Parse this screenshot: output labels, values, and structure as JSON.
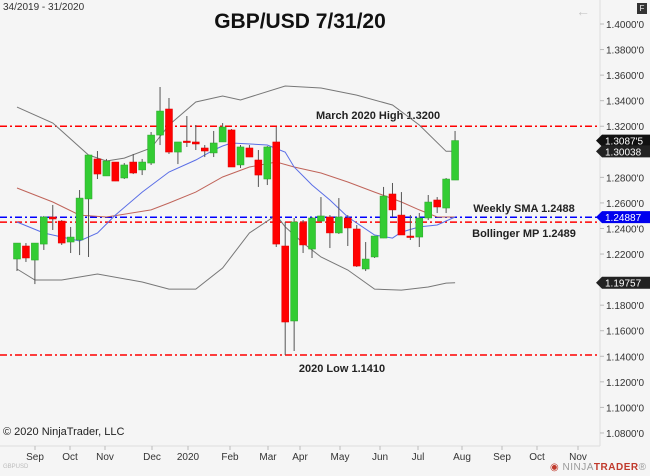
{
  "header": {
    "date_range": "34/2019 - 31/2020",
    "title": "GBP/USD 7/31/20",
    "back_icon": "arrow-left-icon",
    "f_button": "F"
  },
  "footer": {
    "copyright": "© 2020 NinjaTrader, LLC",
    "symbol": "GBPUSD",
    "logo_prefix": "NINJA",
    "logo_suffix": "TRADER",
    "logo_mark": "®"
  },
  "colors": {
    "up": "#33cc33",
    "down": "#ff0000",
    "upper_band": "#777777",
    "lower_band": "#777777",
    "middle_band": "#c0645a",
    "sma": "#5a6ee6",
    "sma_line": "#0000ff",
    "level_line": "#ff0000",
    "background": "#f5f5f5"
  },
  "chart_data": {
    "type": "candlestick",
    "title": "GBP/USD 7/31/20",
    "interval": "weekly",
    "ylim": [
      1.08,
      1.4
    ],
    "y_ticks": [
      "1.4000'0",
      "1.3800'0",
      "1.3600'0",
      "1.3400'0",
      "1.3200'0",
      "1.2800'0",
      "1.2600'0",
      "1.2400'0",
      "1.2200'0",
      "1.1800'0",
      "1.1600'0",
      "1.1400'0",
      "1.1200'0",
      "1.1000'0",
      "1.0800'0"
    ],
    "x_ticks": [
      "Sep",
      "Oct",
      "Nov",
      "Dec",
      "2020",
      "Feb",
      "Mar",
      "Apr",
      "May",
      "Jun",
      "Jul",
      "Aug",
      "Sep",
      "Oct",
      "Nov"
    ],
    "candles": [
      [
        1.2161,
        1.2286,
        1.2067,
        1.2286
      ],
      [
        1.2263,
        1.2286,
        1.2138,
        1.2169
      ],
      [
        1.2153,
        1.2286,
        1.1965,
        1.2286
      ],
      [
        1.2278,
        1.2498,
        1.2232,
        1.249
      ],
      [
        1.249,
        1.2584,
        1.2388,
        1.2474
      ],
      [
        1.2458,
        1.2466,
        1.2271,
        1.2286
      ],
      [
        1.2294,
        1.2412,
        1.2208,
        1.2333
      ],
      [
        1.231,
        1.2701,
        1.2192,
        1.2638
      ],
      [
        1.2631,
        1.2975,
        1.2177,
        1.2975
      ],
      [
        1.2944,
        1.3006,
        1.2787,
        1.2826
      ],
      [
        1.2811,
        1.2944,
        1.2811,
        1.2928
      ],
      [
        1.292,
        1.292,
        1.2771,
        1.2771
      ],
      [
        1.2795,
        1.2912,
        1.2787,
        1.2897
      ],
      [
        1.292,
        1.2983,
        1.2826,
        1.2834
      ],
      [
        1.2858,
        1.2944,
        1.2818,
        1.292
      ],
      [
        1.2912,
        1.3155,
        1.2897,
        1.3131
      ],
      [
        1.3131,
        1.3507,
        1.3053,
        1.3319
      ],
      [
        1.3335,
        1.3421,
        1.2983,
        1.2998
      ],
      [
        1.2998,
        1.3077,
        1.2904,
        1.3077
      ],
      [
        1.3084,
        1.328,
        1.3038,
        1.3077
      ],
      [
        1.3077,
        1.321,
        1.3014,
        1.3061
      ],
      [
        1.303,
        1.3053,
        1.2959,
        1.3006
      ],
      [
        1.2991,
        1.3163,
        1.2959,
        1.3069
      ],
      [
        1.3077,
        1.3225,
        1.3077,
        1.3194
      ],
      [
        1.3171,
        1.3178,
        1.2881,
        1.2881
      ],
      [
        1.2897,
        1.3053,
        1.2873,
        1.3038
      ],
      [
        1.303,
        1.3053,
        1.2959,
        1.2959
      ],
      [
        1.2936,
        1.3014,
        1.2725,
        1.2818
      ],
      [
        1.2787,
        1.3045,
        1.274,
        1.3038
      ],
      [
        1.3077,
        1.3194,
        1.2255,
        1.2278
      ],
      [
        1.2263,
        1.2451,
        1.141,
        1.1668
      ],
      [
        1.1676,
        1.2482,
        1.1441,
        1.2451
      ],
      [
        1.2443,
        1.2466,
        1.2208,
        1.2271
      ],
      [
        1.2239,
        1.249,
        1.2169,
        1.2482
      ],
      [
        1.2458,
        1.2646,
        1.2451,
        1.2498
      ],
      [
        1.249,
        1.2505,
        1.2247,
        1.2365
      ],
      [
        1.2365,
        1.2638,
        1.2357,
        1.249
      ],
      [
        1.2482,
        1.2505,
        1.2263,
        1.2404
      ],
      [
        1.2396,
        1.2427,
        1.2099,
        1.2106
      ],
      [
        1.2083,
        1.2294,
        1.2067,
        1.2161
      ],
      [
        1.2177,
        1.2341,
        1.2169,
        1.2341
      ],
      [
        1.2325,
        1.2725,
        1.2325,
        1.2654
      ],
      [
        1.267,
        1.2756,
        1.249,
        1.2545
      ],
      [
        1.2505,
        1.2685,
        1.2349,
        1.2349
      ],
      [
        1.2341,
        1.2505,
        1.231,
        1.2333
      ],
      [
        1.2333,
        1.2521,
        1.2255,
        1.2482
      ],
      [
        1.2482,
        1.2662,
        1.2466,
        1.2607
      ],
      [
        1.2623,
        1.2646,
        1.2521,
        1.2568
      ],
      [
        1.256,
        1.2795,
        1.2521,
        1.2787
      ],
      [
        1.2779,
        1.3163,
        1.2779,
        1.3088
      ]
    ],
    "candle_fields": [
      "open",
      "high",
      "low",
      "close"
    ],
    "indicators": {
      "upper_band": [
        [
          1,
          1.335
        ],
        [
          5,
          1.3225
        ],
        [
          9,
          1.2975
        ],
        [
          11,
          1.2928
        ],
        [
          13,
          1.2951
        ],
        [
          16,
          1.303
        ],
        [
          18,
          1.321
        ],
        [
          21,
          1.339
        ],
        [
          24,
          1.3437
        ],
        [
          26,
          1.3405
        ],
        [
          31,
          1.3515
        ],
        [
          35,
          1.3499
        ],
        [
          39,
          1.3444
        ],
        [
          43,
          1.3366
        ],
        [
          46,
          1.321
        ],
        [
          49,
          1.3004
        ],
        [
          50,
          1.3004
        ]
      ],
      "lower_band": [
        [
          1,
          1.2083
        ],
        [
          3,
          1.1997
        ],
        [
          6,
          1.1997
        ],
        [
          10,
          1.2044
        ],
        [
          15,
          1.1981
        ],
        [
          18,
          1.1926
        ],
        [
          21,
          1.1926
        ],
        [
          24,
          1.2091
        ],
        [
          27,
          1.2365
        ],
        [
          30,
          1.2505
        ],
        [
          31,
          1.2412
        ],
        [
          33,
          1.2286
        ],
        [
          35,
          1.2177
        ],
        [
          38,
          1.2075
        ],
        [
          41,
          1.1926
        ],
        [
          44,
          1.1918
        ],
        [
          47,
          1.1942
        ],
        [
          49,
          1.1973
        ],
        [
          50,
          1.1976
        ]
      ],
      "middle_band": [
        [
          1,
          1.2717
        ],
        [
          5,
          1.2607
        ],
        [
          8,
          1.2505
        ],
        [
          11,
          1.249
        ],
        [
          16,
          1.2545
        ],
        [
          18,
          1.2599
        ],
        [
          21,
          1.2685
        ],
        [
          24,
          1.2803
        ],
        [
          27,
          1.2881
        ],
        [
          30,
          1.292
        ],
        [
          32,
          1.2881
        ],
        [
          35,
          1.2834
        ],
        [
          38,
          1.2764
        ],
        [
          41,
          1.2685
        ],
        [
          44,
          1.2607
        ],
        [
          46,
          1.2545
        ],
        [
          48,
          1.249
        ],
        [
          50,
          1.249
        ]
      ],
      "fast_ma": [
        [
          1,
          1.2451
        ],
        [
          4,
          1.2365
        ],
        [
          8,
          1.2302
        ],
        [
          10,
          1.2365
        ],
        [
          12,
          1.2505
        ],
        [
          15,
          1.2685
        ],
        [
          18,
          1.2842
        ],
        [
          21,
          1.2936
        ],
        [
          23,
          1.3014
        ],
        [
          24,
          1.3045
        ],
        [
          25,
          1.3069
        ],
        [
          29,
          1.3053
        ],
        [
          31,
          1.2998
        ],
        [
          32,
          1.2881
        ],
        [
          34,
          1.274
        ],
        [
          36,
          1.2623
        ],
        [
          38,
          1.249
        ],
        [
          41,
          1.2349
        ],
        [
          43,
          1.2325
        ],
        [
          44,
          1.2372
        ],
        [
          46,
          1.2412
        ],
        [
          48,
          1.2427
        ],
        [
          50,
          1.249
        ]
      ]
    },
    "levels": [
      {
        "label": "March 2020 High 1.3200",
        "value": 1.32,
        "color": "#ff0000"
      },
      {
        "label": "Weekly SMA 1.2488",
        "value": 1.2488,
        "color": "#0000ff"
      },
      {
        "label": "Bollinger MP 1.2489",
        "value": 1.2489,
        "color": "#ff0000"
      },
      {
        "label": "2020 Low 1.1410",
        "value": 1.141,
        "color": "#ff0000"
      }
    ],
    "price_markers": [
      {
        "text": "1.3087'5",
        "value": 1.30875,
        "color": "#111111"
      },
      {
        "text": "1.30038",
        "value": 1.30038,
        "color": "#222222"
      },
      {
        "text": "1.24887",
        "value": 1.24887,
        "color": "#0000ee"
      },
      {
        "text": "1.19757",
        "value": 1.19757,
        "color": "#222222"
      }
    ]
  }
}
